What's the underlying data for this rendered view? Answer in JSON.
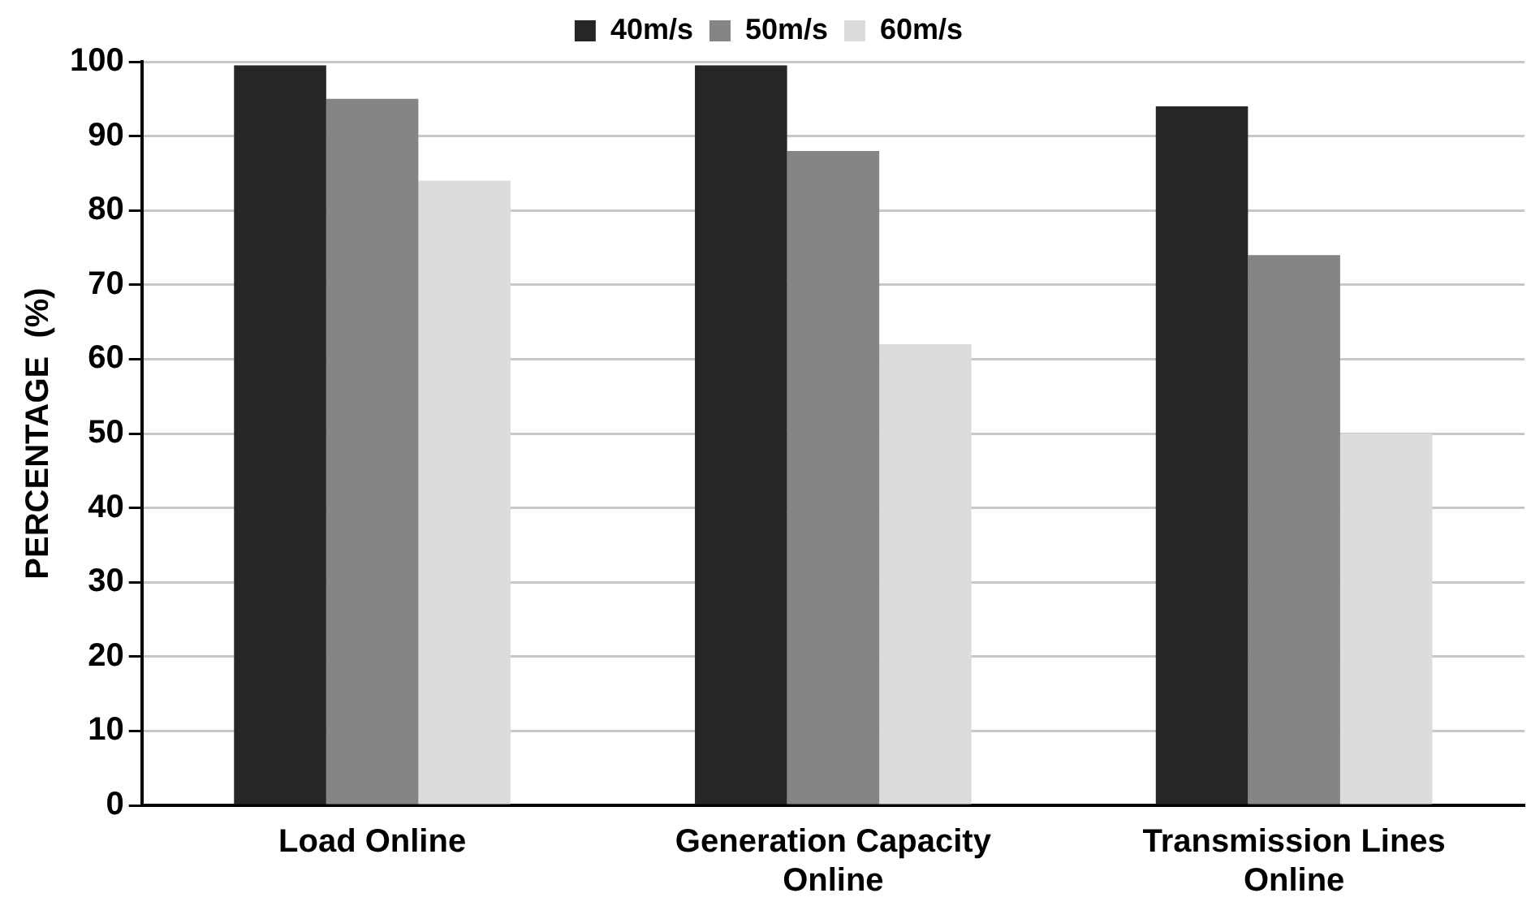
{
  "chart_data": {
    "type": "bar",
    "ylabel": "PERCENTAGE  (%)",
    "categories": [
      "Load Online",
      "Generation Capacity Online",
      "Transmission Lines Online"
    ],
    "series": [
      {
        "name": "40m/s",
        "color": "#262626",
        "values": [
          99.5,
          99.5,
          94
        ]
      },
      {
        "name": "50m/s",
        "color": "#858585",
        "values": [
          95,
          88,
          74
        ]
      },
      {
        "name": "60m/s",
        "color": "#dcdcdc",
        "values": [
          84,
          62,
          50
        ]
      }
    ],
    "ylim": [
      0,
      100
    ],
    "yticks": [
      0,
      10,
      20,
      30,
      40,
      50,
      60,
      70,
      80,
      90,
      100
    ],
    "grid": "y",
    "legend": "top"
  }
}
